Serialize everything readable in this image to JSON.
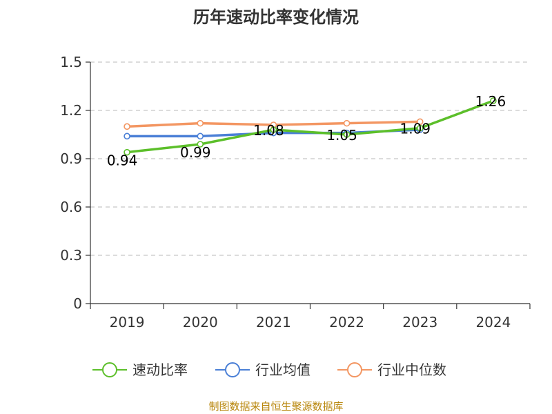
{
  "chart_data": {
    "type": "line",
    "title": "历年速动比率变化情况",
    "categories": [
      "2019",
      "2020",
      "2021",
      "2022",
      "2023",
      "2024"
    ],
    "ylim": [
      0,
      1.5
    ],
    "yticks": [
      0,
      0.3,
      0.6,
      0.9,
      1.2,
      1.5
    ],
    "ytick_labels": [
      "0",
      "0.3",
      "0.6",
      "0.9",
      "1.2",
      "1.5"
    ],
    "grid": true,
    "legend_position": "bottom",
    "series": [
      {
        "name": "速动比率",
        "color": "#5cbf2a",
        "values": [
          0.94,
          0.99,
          1.08,
          1.05,
          1.09,
          1.26
        ],
        "data_labels": [
          "0.94",
          "0.99",
          "1.08",
          "1.05",
          "1.09",
          "1.26"
        ]
      },
      {
        "name": "行业均值",
        "color": "#4a7fd6",
        "values": [
          1.04,
          1.04,
          1.06,
          1.06,
          1.08,
          null
        ]
      },
      {
        "name": "行业中位数",
        "color": "#f39662",
        "values": [
          1.1,
          1.12,
          1.11,
          1.12,
          1.13,
          null
        ]
      }
    ],
    "source": "制图数据来自恒生聚源数据库"
  }
}
